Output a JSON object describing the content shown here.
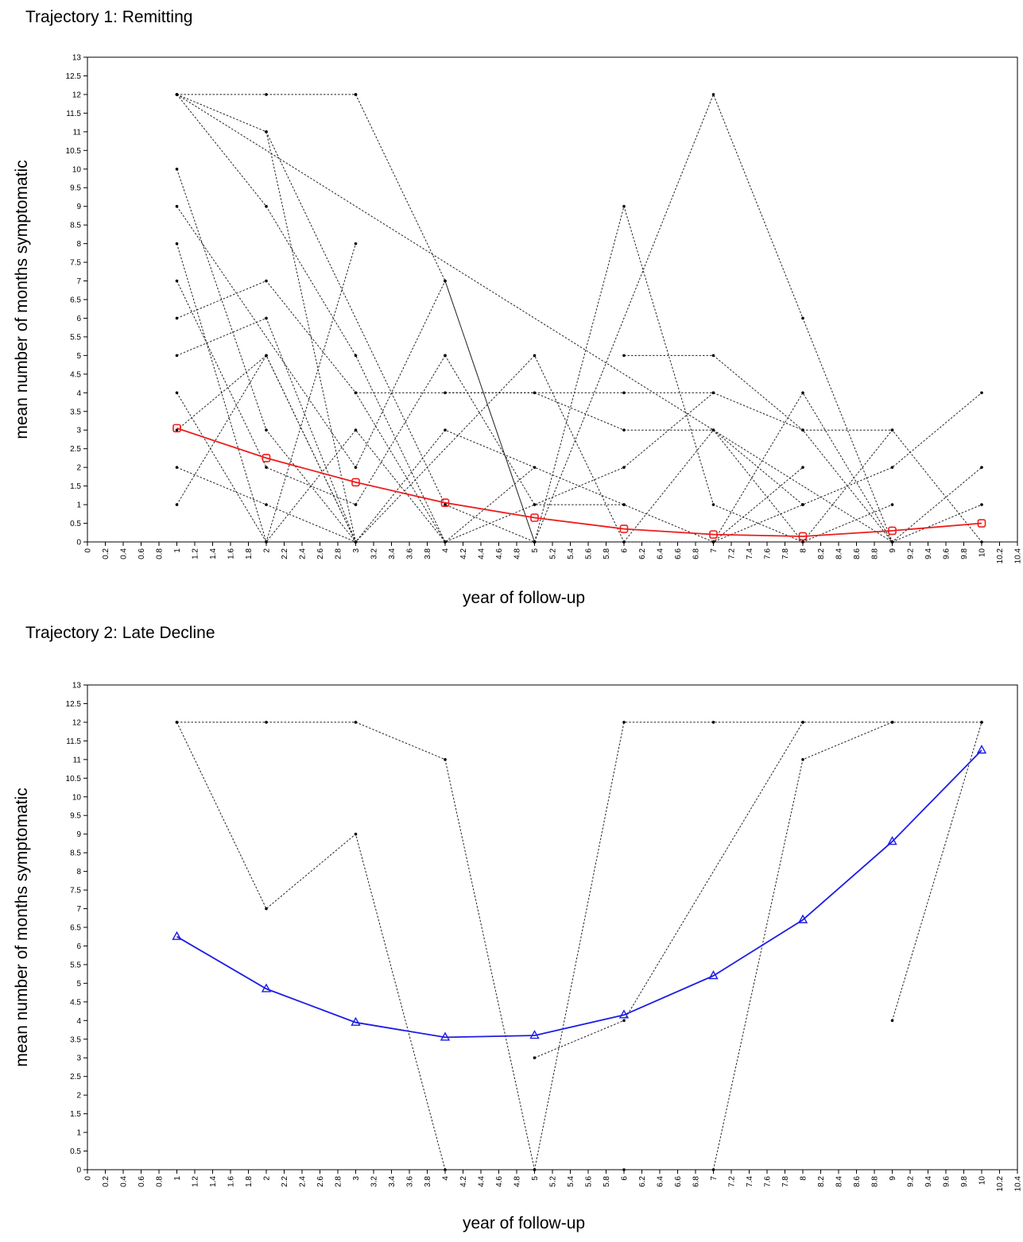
{
  "chart_data": [
    {
      "type": "line",
      "title": "Trajectory 1: Remitting",
      "xlabel": "year of follow-up",
      "ylabel": "mean number of months symptomatic",
      "xlim": [
        0,
        10.4
      ],
      "ylim": [
        0,
        13
      ],
      "x_ticks": [
        "0",
        "0.2",
        "0.4",
        "0.6",
        "0.8",
        "1",
        "1.2",
        "1.4",
        "1.6",
        "1.8",
        "2",
        "2.2",
        "2.4",
        "2.6",
        "2.8",
        "3",
        "3.2",
        "3.4",
        "3.6",
        "3.8",
        "4",
        "4.2",
        "4.4",
        "4.6",
        "4.8",
        "5",
        "5.2",
        "5.4",
        "5.6",
        "5.8",
        "6",
        "6.2",
        "6.4",
        "6.6",
        "6.8",
        "7",
        "7.2",
        "7.4",
        "7.6",
        "7.8",
        "8",
        "8.2",
        "8.4",
        "8.6",
        "8.8",
        "9",
        "9.2",
        "9.4",
        "9.6",
        "9.8",
        "10",
        "10.2",
        "10.4"
      ],
      "y_ticks": [
        "0",
        "0.5",
        "1",
        "1.5",
        "2",
        "2.5",
        "3",
        "3.5",
        "4",
        "4.5",
        "5",
        "5.5",
        "6",
        "6.5",
        "7",
        "7.5",
        "8",
        "8.5",
        "9",
        "9.5",
        "10",
        "10.5",
        "11",
        "11.5",
        "12",
        "12.5",
        "13"
      ],
      "mean_series": {
        "color": "#ee1c1c",
        "marker": "square",
        "x": [
          1,
          2,
          3,
          4,
          5,
          6,
          7,
          8,
          9,
          10
        ],
        "y": [
          3.05,
          2.25,
          1.6,
          1.05,
          0.65,
          0.35,
          0.2,
          0.15,
          0.3,
          0.5
        ]
      },
      "individual_series": [
        {
          "x": [
            1,
            2,
            3
          ],
          "y": [
            12,
            12,
            12
          ]
        },
        {
          "x": [
            1,
            2,
            4,
            5
          ],
          "y": [
            12,
            11,
            1,
            0
          ]
        },
        {
          "x": [
            1,
            2,
            3,
            4
          ],
          "y": [
            12,
            9,
            5,
            0
          ]
        },
        {
          "x": [
            1,
            9
          ],
          "y": [
            12,
            0
          ]
        },
        {
          "x": [
            2,
            3
          ],
          "y": [
            11,
            0
          ]
        },
        {
          "x": [
            1,
            2,
            3
          ],
          "y": [
            10,
            3,
            0
          ]
        },
        {
          "x": [
            1,
            3,
            4,
            5
          ],
          "y": [
            9,
            2,
            7,
            0
          ]
        },
        {
          "x": [
            1,
            2,
            3
          ],
          "y": [
            8,
            0,
            8
          ]
        },
        {
          "x": [
            1,
            2,
            3,
            4
          ],
          "y": [
            7,
            2,
            1,
            5
          ]
        },
        {
          "x": [
            1,
            2,
            3,
            4,
            5
          ],
          "y": [
            6,
            7,
            4,
            0,
            2
          ]
        },
        {
          "x": [
            1,
            2,
            3,
            4,
            6
          ],
          "y": [
            5,
            6,
            0,
            3,
            1
          ]
        },
        {
          "x": [
            1,
            2,
            3,
            4,
            6,
            7
          ],
          "y": [
            4,
            0,
            3,
            0,
            2,
            4
          ]
        },
        {
          "x": [
            1,
            2,
            3,
            5,
            6,
            7,
            8
          ],
          "y": [
            3,
            5,
            0,
            5,
            0,
            0,
            2
          ]
        },
        {
          "x": [
            1,
            2,
            3
          ],
          "y": [
            2,
            1,
            0
          ]
        },
        {
          "x": [
            1,
            2,
            3
          ],
          "y": [
            1,
            5,
            0
          ]
        },
        {
          "x": [
            3,
            4,
            5
          ],
          "y": [
            12,
            7,
            0
          ]
        },
        {
          "x": [
            3,
            6,
            7,
            8,
            9
          ],
          "y": [
            4,
            4,
            4,
            3,
            3
          ]
        },
        {
          "x": [
            4,
            5,
            6,
            7,
            8,
            9
          ],
          "y": [
            4,
            4,
            3,
            3,
            0,
            1
          ]
        },
        {
          "x": [
            4,
            5,
            6,
            7,
            8
          ],
          "y": [
            5,
            1,
            1,
            0,
            1
          ]
        },
        {
          "x": [
            5,
            6,
            7,
            8,
            9,
            10
          ],
          "y": [
            0,
            9,
            1,
            0,
            3,
            0
          ]
        },
        {
          "x": [
            6,
            7,
            8,
            9
          ],
          "y": [
            5,
            5,
            3,
            0
          ]
        },
        {
          "x": [
            5,
            7,
            8,
            9
          ],
          "y": [
            0,
            12,
            6,
            0
          ]
        },
        {
          "x": [
            6,
            7,
            8,
            9,
            10
          ],
          "y": [
            0,
            3,
            1,
            2,
            4
          ]
        },
        {
          "x": [
            7,
            8,
            9,
            10
          ],
          "y": [
            0,
            4,
            0,
            2
          ]
        },
        {
          "x": [
            9,
            10
          ],
          "y": [
            0,
            1
          ]
        }
      ]
    },
    {
      "type": "line",
      "title": "Trajectory 2: Late Decline",
      "xlabel": "year of follow-up",
      "ylabel": "mean number of months symptomatic",
      "xlim": [
        0,
        10.4
      ],
      "ylim": [
        0,
        13
      ],
      "x_ticks": [
        "0",
        "0.2",
        "0.4",
        "0.6",
        "0.8",
        "1",
        "1.2",
        "1.4",
        "1.6",
        "1.8",
        "2",
        "2.2",
        "2.4",
        "2.6",
        "2.8",
        "3",
        "3.2",
        "3.4",
        "3.6",
        "3.8",
        "4",
        "4.2",
        "4.4",
        "4.6",
        "4.8",
        "5",
        "5.2",
        "5.4",
        "5.6",
        "5.8",
        "6",
        "6.2",
        "6.4",
        "6.6",
        "6.8",
        "7",
        "7.2",
        "7.4",
        "7.6",
        "7.8",
        "8",
        "8.2",
        "8.4",
        "8.6",
        "8.8",
        "9",
        "9.2",
        "9.4",
        "9.6",
        "9.8",
        "10",
        "10.2",
        "10.4"
      ],
      "y_ticks": [
        "0",
        "0.5",
        "1",
        "1.5",
        "2",
        "2.5",
        "3",
        "3.5",
        "4",
        "4.5",
        "5",
        "5.5",
        "6",
        "6.5",
        "7",
        "7.5",
        "8",
        "8.5",
        "9",
        "9.5",
        "10",
        "10.5",
        "11",
        "11.5",
        "12",
        "12.5",
        "13"
      ],
      "mean_series": {
        "color": "#1c1ce6",
        "marker": "triangle",
        "x": [
          1,
          2,
          3,
          4,
          5,
          6,
          7,
          8,
          9,
          10
        ],
        "y": [
          6.25,
          4.85,
          3.95,
          3.55,
          3.6,
          4.15,
          5.2,
          6.7,
          8.8,
          11.25
        ]
      },
      "individual_series": [
        {
          "x": [
            1,
            2,
            3,
            4,
            5
          ],
          "y": [
            12,
            12,
            12,
            11,
            0
          ]
        },
        {
          "x": [
            1,
            2,
            3,
            4
          ],
          "y": [
            12,
            7,
            9,
            0
          ]
        },
        {
          "x": [
            5,
            6,
            7,
            8,
            9,
            10
          ],
          "y": [
            0,
            12,
            12,
            12,
            12,
            12
          ]
        },
        {
          "x": [
            5,
            6,
            8
          ],
          "y": [
            3,
            4,
            12
          ]
        },
        {
          "x": [
            7,
            8,
            9
          ],
          "y": [
            0,
            11,
            12
          ]
        },
        {
          "x": [
            9,
            10
          ],
          "y": [
            4,
            12
          ]
        },
        {
          "x": [
            6
          ],
          "y": [
            0
          ]
        }
      ]
    }
  ]
}
